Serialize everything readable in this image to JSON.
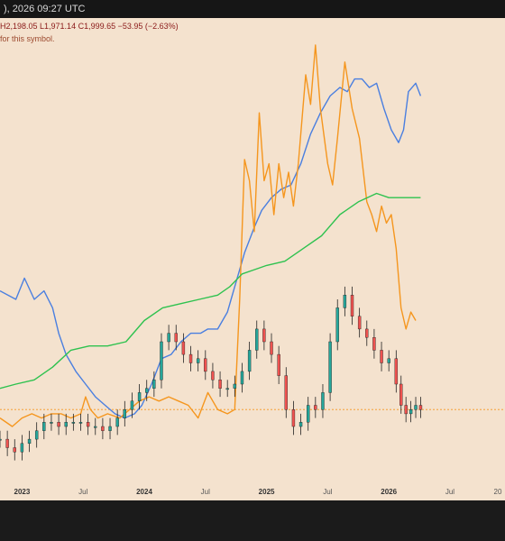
{
  "header": {
    "timestamp_text": "), 2026 09:27 UTC",
    "ohlc_text": "H2,198.05  L1,971.14  C1,999.65  −53.95 (−2.63%)",
    "notice_text": "for this symbol."
  },
  "colors": {
    "background": "#f4e2ce",
    "blue_line": "#4a7fe0",
    "orange_line": "#f5961e",
    "green_line": "#2ec24f",
    "candle_up": "#26a69a",
    "candle_down": "#ef5350",
    "last_price_line": "#f5961e"
  },
  "chart_data": {
    "type": "line",
    "title": "",
    "x_axis_ticks": [
      "2023",
      "Jul",
      "2024",
      "Jul",
      "2025",
      "Jul",
      "2026",
      "Jul",
      "20"
    ],
    "x_axis_bold_ticks": [
      "2023",
      "2024",
      "2025",
      "2026"
    ],
    "x_range": [
      2022.82,
      2026.95
    ],
    "y_range_normalized": [
      0,
      1
    ],
    "note": "",
    "series": [
      {
        "key": "blue",
        "points": [
          [
            2022.82,
            0.42
          ],
          [
            2022.95,
            0.4
          ],
          [
            2023.02,
            0.45
          ],
          [
            2023.1,
            0.4
          ],
          [
            2023.18,
            0.42
          ],
          [
            2023.25,
            0.38
          ],
          [
            2023.3,
            0.32
          ],
          [
            2023.36,
            0.27
          ],
          [
            2023.44,
            0.23
          ],
          [
            2023.52,
            0.2
          ],
          [
            2023.6,
            0.17
          ],
          [
            2023.68,
            0.15
          ],
          [
            2023.76,
            0.13
          ],
          [
            2023.84,
            0.12
          ],
          [
            2023.92,
            0.13
          ],
          [
            2023.98,
            0.15
          ],
          [
            2024.06,
            0.2
          ],
          [
            2024.14,
            0.26
          ],
          [
            2024.22,
            0.27
          ],
          [
            2024.3,
            0.3
          ],
          [
            2024.38,
            0.32
          ],
          [
            2024.46,
            0.32
          ],
          [
            2024.52,
            0.33
          ],
          [
            2024.6,
            0.33
          ],
          [
            2024.68,
            0.37
          ],
          [
            2024.74,
            0.43
          ],
          [
            2024.82,
            0.51
          ],
          [
            2024.9,
            0.57
          ],
          [
            2024.96,
            0.61
          ],
          [
            2025.04,
            0.64
          ],
          [
            2025.12,
            0.66
          ],
          [
            2025.2,
            0.67
          ],
          [
            2025.28,
            0.72
          ],
          [
            2025.36,
            0.79
          ],
          [
            2025.44,
            0.84
          ],
          [
            2025.52,
            0.88
          ],
          [
            2025.6,
            0.9
          ],
          [
            2025.66,
            0.89
          ],
          [
            2025.72,
            0.92
          ],
          [
            2025.78,
            0.92
          ],
          [
            2025.84,
            0.9
          ],
          [
            2025.9,
            0.91
          ],
          [
            2025.96,
            0.85
          ],
          [
            2026.02,
            0.8
          ],
          [
            2026.08,
            0.77
          ],
          [
            2026.12,
            0.8
          ],
          [
            2026.16,
            0.89
          ],
          [
            2026.22,
            0.91
          ],
          [
            2026.26,
            0.88
          ]
        ]
      },
      {
        "key": "orange",
        "points": [
          [
            2022.82,
            0.12
          ],
          [
            2022.92,
            0.1
          ],
          [
            2023.0,
            0.12
          ],
          [
            2023.08,
            0.13
          ],
          [
            2023.16,
            0.12
          ],
          [
            2023.24,
            0.13
          ],
          [
            2023.32,
            0.13
          ],
          [
            2023.4,
            0.12
          ],
          [
            2023.48,
            0.13
          ],
          [
            2023.52,
            0.17
          ],
          [
            2023.56,
            0.14
          ],
          [
            2023.62,
            0.12
          ],
          [
            2023.7,
            0.13
          ],
          [
            2023.8,
            0.12
          ],
          [
            2023.88,
            0.14
          ],
          [
            2023.96,
            0.16
          ],
          [
            2024.04,
            0.17
          ],
          [
            2024.12,
            0.16
          ],
          [
            2024.2,
            0.17
          ],
          [
            2024.28,
            0.16
          ],
          [
            2024.36,
            0.15
          ],
          [
            2024.44,
            0.12
          ],
          [
            2024.52,
            0.18
          ],
          [
            2024.6,
            0.14
          ],
          [
            2024.68,
            0.13
          ],
          [
            2024.74,
            0.14
          ],
          [
            2024.78,
            0.4
          ],
          [
            2024.82,
            0.73
          ],
          [
            2024.86,
            0.68
          ],
          [
            2024.9,
            0.56
          ],
          [
            2024.94,
            0.84
          ],
          [
            2024.98,
            0.68
          ],
          [
            2025.02,
            0.72
          ],
          [
            2025.06,
            0.6
          ],
          [
            2025.1,
            0.72
          ],
          [
            2025.14,
            0.64
          ],
          [
            2025.18,
            0.7
          ],
          [
            2025.22,
            0.62
          ],
          [
            2025.26,
            0.72
          ],
          [
            2025.32,
            0.93
          ],
          [
            2025.36,
            0.86
          ],
          [
            2025.4,
            1.0
          ],
          [
            2025.44,
            0.85
          ],
          [
            2025.5,
            0.72
          ],
          [
            2025.54,
            0.67
          ],
          [
            2025.58,
            0.78
          ],
          [
            2025.64,
            0.96
          ],
          [
            2025.7,
            0.85
          ],
          [
            2025.76,
            0.78
          ],
          [
            2025.82,
            0.63
          ],
          [
            2025.86,
            0.6
          ],
          [
            2025.9,
            0.56
          ],
          [
            2025.94,
            0.62
          ],
          [
            2025.98,
            0.58
          ],
          [
            2026.02,
            0.6
          ],
          [
            2026.06,
            0.52
          ],
          [
            2026.1,
            0.38
          ],
          [
            2026.14,
            0.33
          ],
          [
            2026.18,
            0.37
          ],
          [
            2026.22,
            0.35
          ]
        ]
      },
      {
        "key": "green",
        "points": [
          [
            2022.82,
            0.19
          ],
          [
            2022.95,
            0.2
          ],
          [
            2023.1,
            0.21
          ],
          [
            2023.25,
            0.24
          ],
          [
            2023.4,
            0.28
          ],
          [
            2023.55,
            0.29
          ],
          [
            2023.7,
            0.29
          ],
          [
            2023.85,
            0.3
          ],
          [
            2024.0,
            0.35
          ],
          [
            2024.15,
            0.38
          ],
          [
            2024.3,
            0.39
          ],
          [
            2024.45,
            0.4
          ],
          [
            2024.6,
            0.41
          ],
          [
            2024.7,
            0.43
          ],
          [
            2024.8,
            0.46
          ],
          [
            2024.9,
            0.47
          ],
          [
            2025.0,
            0.48
          ],
          [
            2025.15,
            0.49
          ],
          [
            2025.3,
            0.52
          ],
          [
            2025.45,
            0.55
          ],
          [
            2025.6,
            0.6
          ],
          [
            2025.75,
            0.63
          ],
          [
            2025.9,
            0.65
          ],
          [
            2026.0,
            0.64
          ],
          [
            2026.1,
            0.64
          ],
          [
            2026.26,
            0.64
          ]
        ]
      },
      {
        "key": "candles",
        "points": [
          [
            2022.82,
            0.07
          ],
          [
            2022.88,
            0.05
          ],
          [
            2022.94,
            0.04
          ],
          [
            2023.0,
            0.06
          ],
          [
            2023.06,
            0.07
          ],
          [
            2023.12,
            0.09
          ],
          [
            2023.18,
            0.11
          ],
          [
            2023.24,
            0.11
          ],
          [
            2023.3,
            0.1
          ],
          [
            2023.36,
            0.11
          ],
          [
            2023.42,
            0.11
          ],
          [
            2023.48,
            0.11
          ],
          [
            2023.54,
            0.1
          ],
          [
            2023.6,
            0.1
          ],
          [
            2023.66,
            0.09
          ],
          [
            2023.72,
            0.1
          ],
          [
            2023.78,
            0.12
          ],
          [
            2023.84,
            0.14
          ],
          [
            2023.9,
            0.16
          ],
          [
            2023.96,
            0.18
          ],
          [
            2024.02,
            0.19
          ],
          [
            2024.08,
            0.21
          ],
          [
            2024.14,
            0.3
          ],
          [
            2024.2,
            0.32
          ],
          [
            2024.26,
            0.3
          ],
          [
            2024.32,
            0.27
          ],
          [
            2024.38,
            0.25
          ],
          [
            2024.44,
            0.26
          ],
          [
            2024.5,
            0.23
          ],
          [
            2024.56,
            0.21
          ],
          [
            2024.62,
            0.19
          ],
          [
            2024.68,
            0.19
          ],
          [
            2024.74,
            0.2
          ],
          [
            2024.8,
            0.23
          ],
          [
            2024.86,
            0.28
          ],
          [
            2024.92,
            0.33
          ],
          [
            2024.98,
            0.3
          ],
          [
            2025.04,
            0.27
          ],
          [
            2025.1,
            0.22
          ],
          [
            2025.16,
            0.14
          ],
          [
            2025.22,
            0.1
          ],
          [
            2025.28,
            0.11
          ],
          [
            2025.34,
            0.15
          ],
          [
            2025.4,
            0.14
          ],
          [
            2025.46,
            0.18
          ],
          [
            2025.52,
            0.3
          ],
          [
            2025.58,
            0.38
          ],
          [
            2025.64,
            0.41
          ],
          [
            2025.7,
            0.36
          ],
          [
            2025.76,
            0.33
          ],
          [
            2025.82,
            0.31
          ],
          [
            2025.88,
            0.28
          ],
          [
            2025.94,
            0.25
          ],
          [
            2026.0,
            0.26
          ],
          [
            2026.06,
            0.2
          ],
          [
            2026.1,
            0.15
          ],
          [
            2026.14,
            0.13
          ],
          [
            2026.18,
            0.14
          ],
          [
            2026.22,
            0.15
          ],
          [
            2026.26,
            0.14
          ]
        ]
      }
    ],
    "last_price_level_normalized": 0.14,
    "grid": false,
    "legend": "none"
  }
}
